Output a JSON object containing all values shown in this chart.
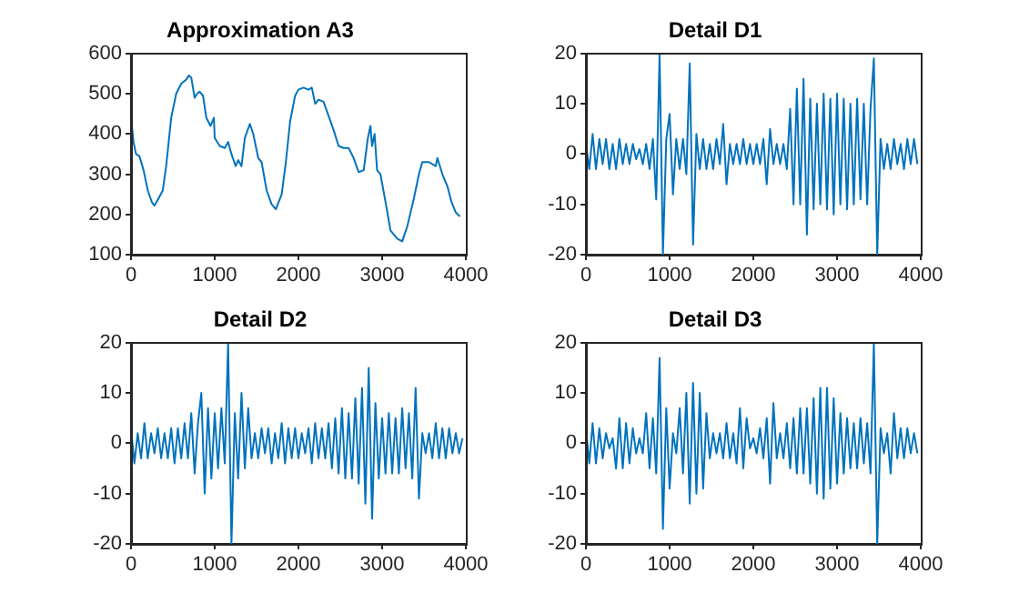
{
  "chart_data": [
    {
      "type": "line",
      "title": "Approximation A3",
      "color": "#0072bd",
      "grid": false,
      "x": [
        10,
        30,
        60,
        100,
        150,
        200,
        250,
        280,
        330,
        380,
        420,
        480,
        540,
        600,
        660,
        690,
        720,
        760,
        790,
        820,
        860,
        900,
        950,
        990,
        1000,
        1060,
        1120,
        1160,
        1200,
        1250,
        1280,
        1320,
        1360,
        1420,
        1460,
        1520,
        1560,
        1620,
        1680,
        1730,
        1800,
        1850,
        1900,
        1960,
        2000,
        2060,
        2120,
        2160,
        2200,
        2240,
        2300,
        2360,
        2420,
        2480,
        2540,
        2600,
        2660,
        2720,
        2780,
        2830,
        2860,
        2880,
        2910,
        2940,
        2980,
        3050,
        3100,
        3180,
        3240,
        3300,
        3380,
        3440,
        3480,
        3560,
        3640,
        3660,
        3720,
        3780,
        3830,
        3880,
        3930
      ],
      "values": [
        420,
        380,
        350,
        345,
        310,
        260,
        230,
        222,
        240,
        260,
        320,
        440,
        500,
        525,
        535,
        545,
        540,
        490,
        500,
        505,
        495,
        440,
        420,
        440,
        390,
        370,
        365,
        380,
        350,
        320,
        335,
        320,
        390,
        425,
        400,
        340,
        330,
        260,
        225,
        213,
        250,
        330,
        430,
        495,
        510,
        515,
        510,
        515,
        475,
        485,
        480,
        445,
        410,
        370,
        365,
        365,
        340,
        305,
        310,
        390,
        420,
        370,
        400,
        310,
        300,
        220,
        160,
        140,
        133,
        170,
        240,
        300,
        330,
        330,
        320,
        340,
        300,
        270,
        230,
        205,
        195
      ],
      "xlim": [
        0,
        4000
      ],
      "xticks": [
        0,
        1000,
        2000,
        3000,
        4000
      ],
      "ylim": [
        100,
        600
      ],
      "yticks": [
        100,
        200,
        300,
        400,
        500,
        600
      ]
    },
    {
      "type": "line",
      "title": "Detail D1",
      "color": "#0072bd",
      "grid": false,
      "x": [
        0,
        40,
        80,
        120,
        160,
        200,
        240,
        280,
        320,
        360,
        400,
        440,
        480,
        520,
        560,
        600,
        640,
        680,
        720,
        760,
        800,
        840,
        880,
        920,
        960,
        1000,
        1040,
        1080,
        1120,
        1160,
        1200,
        1240,
        1280,
        1320,
        1360,
        1400,
        1440,
        1480,
        1520,
        1560,
        1600,
        1640,
        1680,
        1720,
        1760,
        1800,
        1840,
        1880,
        1920,
        1960,
        2000,
        2040,
        2080,
        2120,
        2160,
        2200,
        2240,
        2280,
        2320,
        2360,
        2400,
        2440,
        2480,
        2520,
        2560,
        2600,
        2640,
        2680,
        2720,
        2760,
        2800,
        2840,
        2880,
        2920,
        2960,
        3000,
        3040,
        3080,
        3120,
        3160,
        3200,
        3240,
        3280,
        3320,
        3360,
        3400,
        3440,
        3480,
        3520,
        3560,
        3600,
        3640,
        3680,
        3720,
        3760,
        3800,
        3840,
        3880,
        3920,
        3960
      ],
      "values": [
        2,
        -3,
        4,
        -3,
        3,
        -2,
        3,
        -3,
        2,
        -3,
        3,
        -2,
        2,
        -2,
        2,
        -1,
        1,
        -2,
        2,
        -3,
        3,
        -9,
        20,
        -20,
        3,
        8,
        -8,
        3,
        -3,
        3,
        -4,
        18,
        -18,
        4,
        -3,
        3,
        -3,
        2,
        -3,
        3,
        -2,
        6,
        -6,
        2,
        -2,
        2,
        -2,
        3,
        -2,
        2,
        -2,
        2,
        -2,
        3,
        -6,
        5,
        -2,
        2,
        -2,
        2,
        -3,
        9,
        -10,
        13,
        -10,
        15,
        -16,
        11,
        -11,
        10,
        -10,
        12,
        -11,
        11,
        -12,
        12,
        -10,
        11,
        -11,
        10,
        -10,
        11,
        -9,
        10,
        -10,
        9,
        19,
        -20,
        3,
        -3,
        2,
        -3,
        3,
        -2,
        2,
        -3,
        3,
        -2,
        3,
        -2
      ],
      "xlim": [
        0,
        4000
      ],
      "xticks": [
        0,
        1000,
        2000,
        3000,
        4000
      ],
      "ylim": [
        -20,
        20
      ],
      "yticks": [
        -20,
        -10,
        0,
        10,
        20
      ]
    },
    {
      "type": "line",
      "title": "Detail D2",
      "color": "#0072bd",
      "grid": false,
      "x": [
        0,
        40,
        80,
        120,
        160,
        200,
        240,
        280,
        320,
        360,
        400,
        440,
        480,
        520,
        560,
        600,
        640,
        680,
        720,
        760,
        800,
        840,
        880,
        920,
        960,
        1000,
        1040,
        1080,
        1120,
        1160,
        1200,
        1240,
        1280,
        1320,
        1360,
        1400,
        1440,
        1480,
        1520,
        1560,
        1600,
        1640,
        1680,
        1720,
        1760,
        1800,
        1840,
        1880,
        1920,
        1960,
        2000,
        2040,
        2080,
        2120,
        2160,
        2200,
        2240,
        2280,
        2320,
        2360,
        2400,
        2440,
        2480,
        2520,
        2560,
        2600,
        2640,
        2680,
        2720,
        2760,
        2800,
        2840,
        2880,
        2920,
        2960,
        3000,
        3040,
        3080,
        3120,
        3160,
        3200,
        3240,
        3280,
        3320,
        3360,
        3400,
        3440,
        3480,
        3520,
        3560,
        3600,
        3640,
        3680,
        3720,
        3760,
        3800,
        3840,
        3880,
        3920,
        3960
      ],
      "values": [
        3,
        -4,
        2,
        -3,
        4,
        -3,
        2,
        -2,
        3,
        -3,
        2,
        -3,
        3,
        -4,
        3,
        -3,
        4,
        -3,
        6,
        -6,
        4,
        10,
        -10,
        7,
        -7,
        6,
        -5,
        7,
        -4,
        20,
        -20,
        6,
        -7,
        10,
        -5,
        7,
        -3,
        2,
        -3,
        3,
        -2,
        3,
        -4,
        2,
        -3,
        4,
        -4,
        3,
        -3,
        3,
        -3,
        2,
        -2,
        3,
        -4,
        4,
        -3,
        3,
        -3,
        4,
        -5,
        5,
        -6,
        7,
        -7,
        6,
        -7,
        9,
        -8,
        11,
        -12,
        15,
        -15,
        8,
        -7,
        5,
        -6,
        6,
        -6,
        5,
        -6,
        7,
        -5,
        6,
        -7,
        11,
        -11,
        2,
        -2,
        2,
        -3,
        4,
        -3,
        3,
        -3,
        3,
        -2,
        2,
        -2,
        1
      ],
      "xlim": [
        0,
        4000
      ],
      "xticks": [
        0,
        1000,
        2000,
        3000,
        4000
      ],
      "ylim": [
        -20,
        20
      ],
      "yticks": [
        -20,
        -10,
        0,
        10,
        20
      ]
    },
    {
      "type": "line",
      "title": "Detail D3",
      "color": "#0072bd",
      "grid": false,
      "x": [
        0,
        40,
        80,
        120,
        160,
        200,
        240,
        280,
        320,
        360,
        400,
        440,
        480,
        520,
        560,
        600,
        640,
        680,
        720,
        760,
        800,
        840,
        880,
        920,
        960,
        1000,
        1040,
        1080,
        1120,
        1160,
        1200,
        1240,
        1280,
        1320,
        1360,
        1400,
        1440,
        1480,
        1520,
        1560,
        1600,
        1640,
        1680,
        1720,
        1760,
        1800,
        1840,
        1880,
        1920,
        1960,
        2000,
        2040,
        2080,
        2120,
        2160,
        2200,
        2240,
        2280,
        2320,
        2360,
        2400,
        2440,
        2480,
        2520,
        2560,
        2600,
        2640,
        2680,
        2720,
        2760,
        2800,
        2840,
        2880,
        2920,
        2960,
        3000,
        3040,
        3080,
        3120,
        3160,
        3200,
        3240,
        3280,
        3320,
        3360,
        3400,
        3440,
        3480,
        3520,
        3560,
        3600,
        3640,
        3680,
        3720,
        3760,
        3800,
        3840,
        3880,
        3920,
        3960
      ],
      "values": [
        3,
        -4,
        4,
        -4,
        3,
        -3,
        2,
        -1,
        1,
        -5,
        5,
        -5,
        4,
        -4,
        3,
        -2,
        1,
        -2,
        6,
        -5,
        5,
        -6,
        17,
        -17,
        7,
        -9,
        2,
        -2,
        7,
        -6,
        10,
        -12,
        12,
        -10,
        10,
        -9,
        6,
        -3,
        2,
        -2,
        2,
        -3,
        4,
        -3,
        2,
        -4,
        7,
        -5,
        5,
        -1,
        1,
        -2,
        3,
        -3,
        5,
        -8,
        8,
        -3,
        2,
        -3,
        4,
        -5,
        5,
        -6,
        7,
        -6,
        7,
        -8,
        9,
        -10,
        11,
        -11,
        11,
        -9,
        9,
        -8,
        6,
        -6,
        5,
        -5,
        4,
        -5,
        5,
        -4,
        4,
        -6,
        20,
        -20,
        3,
        -2,
        2,
        -6,
        6,
        -3,
        3,
        -3,
        3,
        -2,
        2,
        -2
      ],
      "xlim": [
        0,
        4000
      ],
      "xticks": [
        0,
        1000,
        2000,
        3000,
        4000
      ],
      "ylim": [
        -20,
        20
      ],
      "yticks": [
        -20,
        -10,
        0,
        10,
        20
      ]
    }
  ]
}
